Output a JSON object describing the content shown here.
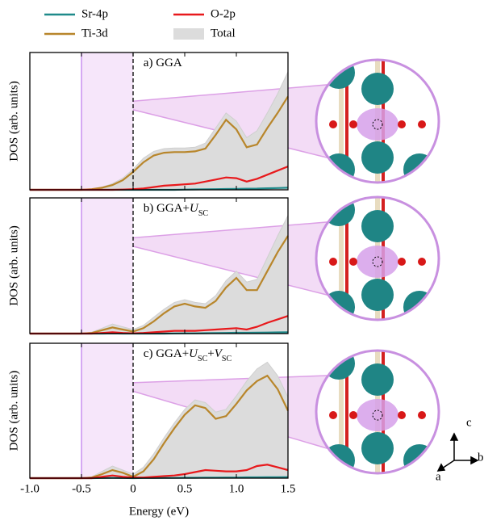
{
  "chart_data": [
    {
      "type": "line",
      "panel_label": [
        {
          "text": "a) GGA",
          "style": "normal"
        }
      ],
      "ylabel": "DOS  (arb. units)",
      "x": [
        -1.0,
        -0.9,
        -0.8,
        -0.7,
        -0.6,
        -0.5,
        -0.4,
        -0.3,
        -0.2,
        -0.1,
        0,
        0.1,
        0.2,
        0.3,
        0.4,
        0.5,
        0.6,
        0.7,
        0.8,
        0.9,
        1.0,
        1.1,
        1.2,
        1.3,
        1.4,
        1.5
      ],
      "xlim": [
        -1,
        1.5
      ],
      "ylim": [
        0,
        10
      ],
      "xticks": [
        -1,
        -0.5,
        0,
        0.5,
        1,
        1.5
      ],
      "highlight": [
        -0.5,
        0
      ],
      "vline": 0,
      "series": [
        {
          "name": "Sr-4p",
          "color": "#1f8a8a",
          "values": [
            0,
            0,
            0,
            0,
            0,
            0,
            0,
            0,
            0,
            0,
            0,
            0,
            0,
            0,
            0,
            0.02,
            0.03,
            0.04,
            0.05,
            0.06,
            0.07,
            0.08,
            0.09,
            0.11,
            0.13,
            0.15
          ]
        },
        {
          "name": "Ti-3d",
          "color": "#b8862b",
          "values": [
            0,
            0,
            0,
            0,
            0,
            0,
            0.05,
            0.15,
            0.35,
            0.7,
            1.3,
            2.0,
            2.5,
            2.7,
            2.75,
            2.75,
            2.8,
            3.0,
            4.0,
            5.1,
            4.4,
            3.1,
            3.3,
            4.5,
            5.6,
            6.8
          ]
        },
        {
          "name": "O-2p",
          "color": "#e8191c",
          "values": [
            0,
            0,
            0,
            0,
            0,
            0,
            0,
            0,
            0,
            0.02,
            0.05,
            0.1,
            0.2,
            0.3,
            0.35,
            0.4,
            0.45,
            0.6,
            0.75,
            0.9,
            0.85,
            0.6,
            0.8,
            1.1,
            1.4,
            1.7
          ]
        },
        {
          "name": "Total",
          "color": "#dcdcdc",
          "fill": true,
          "values": [
            0,
            0,
            0,
            0,
            0,
            0,
            0.05,
            0.2,
            0.45,
            0.85,
            1.5,
            2.3,
            2.8,
            3.0,
            3.05,
            3.05,
            3.1,
            3.4,
            4.5,
            5.6,
            5.0,
            3.8,
            4.3,
            5.6,
            7.0,
            8.6
          ]
        }
      ]
    },
    {
      "type": "line",
      "panel_label": [
        {
          "text": "b) GGA+",
          "style": "normal"
        },
        {
          "text": "U",
          "style": "italic"
        },
        {
          "text": "SC",
          "style": "sub"
        }
      ],
      "ylabel": "DOS  (arb. units)",
      "x": [
        -1.0,
        -0.9,
        -0.8,
        -0.7,
        -0.6,
        -0.5,
        -0.4,
        -0.3,
        -0.2,
        -0.1,
        0,
        0.1,
        0.2,
        0.3,
        0.4,
        0.5,
        0.6,
        0.7,
        0.8,
        0.9,
        1.0,
        1.1,
        1.2,
        1.3,
        1.4,
        1.5
      ],
      "xlim": [
        -1,
        1.5
      ],
      "ylim": [
        0,
        10
      ],
      "xticks": [
        -1,
        -0.5,
        0,
        0.5,
        1,
        1.5
      ],
      "highlight": [
        -0.5,
        0
      ],
      "vline": 0,
      "series": [
        {
          "color": "#1f8a8a",
          "values": [
            0,
            0,
            0,
            0,
            0,
            0,
            0,
            0,
            0.01,
            0,
            0,
            0,
            0,
            0,
            0.01,
            0.02,
            0.02,
            0.03,
            0.04,
            0.05,
            0.06,
            0.06,
            0.07,
            0.08,
            0.09,
            0.1
          ]
        },
        {
          "color": "#b8862b",
          "values": [
            0,
            0,
            0,
            0,
            0,
            0,
            0.05,
            0.25,
            0.45,
            0.3,
            0.15,
            0.4,
            0.9,
            1.5,
            2.0,
            2.2,
            2.0,
            1.9,
            2.4,
            3.4,
            4.1,
            3.2,
            3.2,
            4.6,
            6.0,
            7.2
          ]
        },
        {
          "color": "#e8191c",
          "values": [
            0,
            0,
            0,
            0,
            0,
            0,
            0,
            0.05,
            0.1,
            0.05,
            0.02,
            0.05,
            0.1,
            0.15,
            0.2,
            0.2,
            0.2,
            0.25,
            0.3,
            0.35,
            0.4,
            0.3,
            0.5,
            0.8,
            1.05,
            1.3
          ]
        },
        {
          "color": "#dcdcdc",
          "fill": true,
          "values": [
            0,
            0,
            0,
            0,
            0,
            0,
            0.1,
            0.4,
            0.7,
            0.5,
            0.3,
            0.6,
            1.2,
            1.8,
            2.3,
            2.5,
            2.3,
            2.2,
            2.8,
            3.9,
            4.6,
            3.8,
            4.0,
            5.6,
            7.2,
            8.7
          ]
        }
      ]
    },
    {
      "type": "line",
      "panel_label": [
        {
          "text": "c) GGA+",
          "style": "normal"
        },
        {
          "text": "U",
          "style": "italic"
        },
        {
          "text": "SC",
          "style": "sub"
        },
        {
          "text": "+",
          "style": "normal"
        },
        {
          "text": "V",
          "style": "italic"
        },
        {
          "text": "SC",
          "style": "sub"
        }
      ],
      "ylabel": "DOS  (arb. units)",
      "xlabel": "Energy (eV)",
      "x": [
        -1.0,
        -0.9,
        -0.8,
        -0.7,
        -0.6,
        -0.5,
        -0.4,
        -0.3,
        -0.2,
        -0.1,
        0,
        0.1,
        0.2,
        0.3,
        0.4,
        0.5,
        0.6,
        0.7,
        0.8,
        0.9,
        1.0,
        1.1,
        1.2,
        1.3,
        1.4,
        1.5
      ],
      "xlim": [
        -1,
        1.5
      ],
      "ylim": [
        0,
        10
      ],
      "highlight": [
        -0.5,
        0
      ],
      "vline": 0,
      "xticks": [
        {
          "value": -1,
          "label": "-1.0"
        },
        -0.5,
        0,
        0.5,
        {
          "value": 1,
          "label": "1.0"
        },
        1.5
      ],
      "series": [
        {
          "color": "#1f8a8a",
          "values": [
            0,
            0,
            0,
            0,
            0,
            0,
            0,
            0.01,
            0.02,
            0.01,
            0,
            0.01,
            0.01,
            0.02,
            0.02,
            0.03,
            0.03,
            0.04,
            0.04,
            0.05,
            0.05,
            0.06,
            0.06,
            0.07,
            0.07,
            0.08
          ]
        },
        {
          "color": "#b8862b",
          "values": [
            0,
            0,
            0,
            0,
            0,
            0,
            0.05,
            0.3,
            0.6,
            0.4,
            0.1,
            0.5,
            1.4,
            2.6,
            3.7,
            4.7,
            5.4,
            5.2,
            4.4,
            4.6,
            5.5,
            6.5,
            7.2,
            7.6,
            6.6,
            5.0
          ]
        },
        {
          "color": "#e8191c",
          "values": [
            0,
            0,
            0,
            0,
            0,
            0,
            0,
            0.1,
            0.2,
            0.1,
            0.05,
            0.05,
            0.1,
            0.15,
            0.2,
            0.3,
            0.45,
            0.6,
            0.55,
            0.5,
            0.5,
            0.6,
            0.9,
            1.0,
            0.8,
            0.6
          ]
        },
        {
          "color": "#dcdcdc",
          "fill": true,
          "values": [
            0,
            0,
            0,
            0,
            0,
            0,
            0.1,
            0.5,
            0.9,
            0.6,
            0.3,
            0.8,
            1.8,
            3.0,
            4.1,
            5.1,
            5.8,
            5.6,
            4.9,
            5.1,
            6.1,
            7.2,
            8.1,
            8.6,
            7.6,
            6.0
          ]
        }
      ]
    }
  ],
  "crystal_axes": {
    "up": "c",
    "right": "b",
    "diagonal": "a"
  }
}
